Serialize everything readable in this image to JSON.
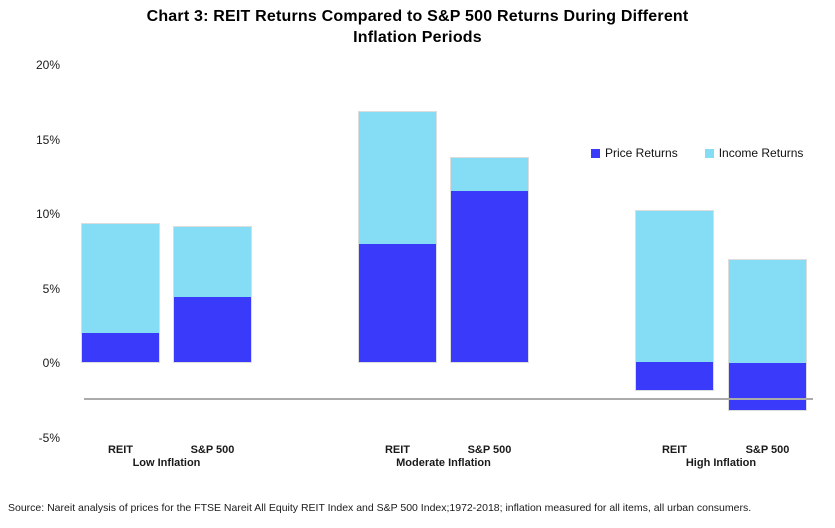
{
  "title": {
    "lines": [
      "Chart 3: REIT Returns Compared to S&P 500 Returns During Different",
      "Inflation Periods"
    ]
  },
  "source_note": "Source: Nareit analysis of prices for the FTSE Nareit All Equity REIT Index and S&P 500 Index;1972-2018; inflation measured for all items, all urban consumers.",
  "chart_data": {
    "type": "bar",
    "stacked": true,
    "unit": "%",
    "title": "Chart 3: REIT Returns Compared to S&P 500 Returns During Different Inflation Periods",
    "groups": [
      {
        "label": "Low Inflation",
        "bars": [
          {
            "label": "REIT",
            "price_returns": 2.0,
            "income_returns": 7.4
          },
          {
            "label": "S&P 500",
            "price_returns": 4.4,
            "income_returns": 4.8
          }
        ]
      },
      {
        "label": "Moderate Inflation",
        "bars": [
          {
            "label": "REIT",
            "price_returns": 8.0,
            "income_returns": 8.9
          },
          {
            "label": "S&P 500",
            "price_returns": 11.6,
            "income_returns": 2.2
          }
        ]
      },
      {
        "label": "High Inflation",
        "bars": [
          {
            "label": "REIT",
            "price_returns": -1.9,
            "income_returns": 10.3
          },
          {
            "label": "S&P 500",
            "price_returns": -3.2,
            "income_returns": 7.0
          }
        ]
      }
    ],
    "series": [
      {
        "name": "Price Returns",
        "key": "price_returns",
        "color": "#3a3afb"
      },
      {
        "name": "Income Returns",
        "key": "income_returns",
        "color": "#85dcf5"
      }
    ],
    "y_axis": {
      "min": -5,
      "max": 20,
      "tick_interval": 5,
      "tick_labels": [
        "20%",
        "15%",
        "10%",
        "5%",
        "0%",
        "-5%"
      ],
      "tick_values": [
        20,
        15,
        10,
        5,
        0,
        -5
      ]
    },
    "legend_position": "top-right",
    "grid": false,
    "axis_rule": {
      "color": "#ababab",
      "at_percent": -2.4
    }
  }
}
